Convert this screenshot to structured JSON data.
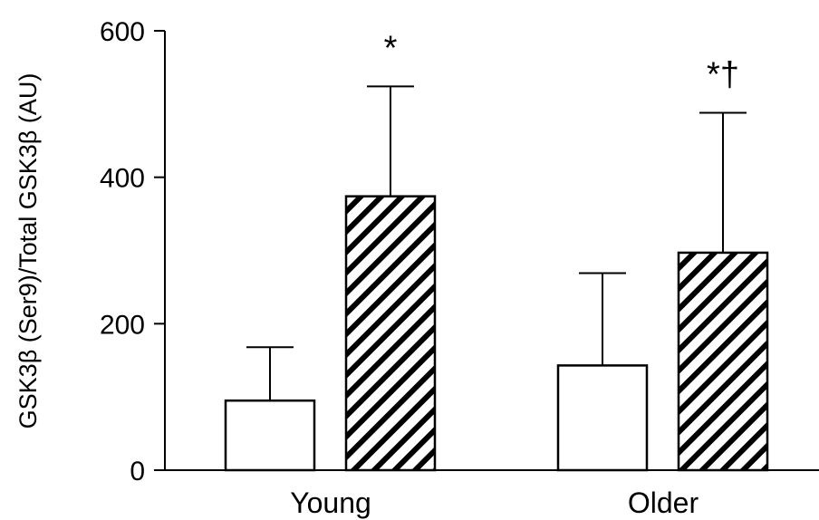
{
  "chart_data": {
    "type": "bar",
    "title": "",
    "xlabel": "",
    "ylabel": "GSK3β (Ser9)/Total GSK3β (AU)",
    "ylim": [
      0,
      600
    ],
    "yticks": [
      0,
      200,
      400,
      600
    ],
    "grid": false,
    "categories": [
      "Young",
      "Older"
    ],
    "series": [
      {
        "fill": "white",
        "values": [
          95,
          143
        ],
        "errors": [
          73,
          126
        ],
        "annotations": [
          "",
          ""
        ]
      },
      {
        "fill": "hatched",
        "values": [
          374,
          297
        ],
        "errors": [
          150,
          191
        ],
        "annotations": [
          "*",
          "*†"
        ]
      }
    ]
  }
}
